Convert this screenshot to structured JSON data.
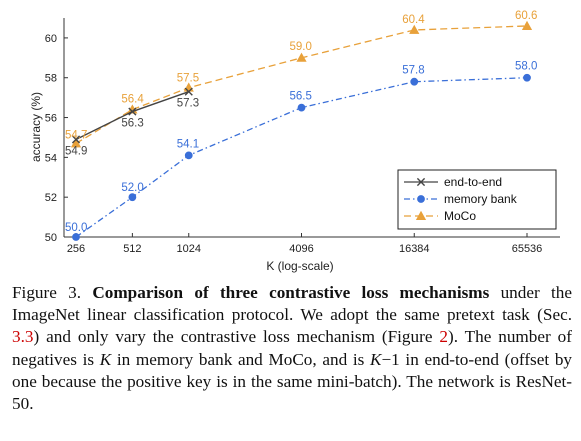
{
  "chart_data": {
    "type": "line",
    "xlabel": "K (log-scale)",
    "ylabel": "accuracy (%)",
    "x_scale": "log2",
    "x_ticks": [
      "256",
      "512",
      "1024",
      "4096",
      "16384",
      "65536"
    ],
    "y_ticks": [
      "50",
      "52",
      "54",
      "56",
      "58",
      "60"
    ],
    "ylim": [
      50,
      61
    ],
    "grid": false,
    "legend_position": "bottom-right",
    "series": [
      {
        "name": "end-to-end",
        "marker": "x",
        "line_style": "solid",
        "color": "#444444",
        "x": [
          256,
          512,
          1024
        ],
        "y": [
          54.9,
          56.3,
          57.3
        ],
        "labels": [
          "54.9",
          "56.3",
          "57.3"
        ]
      },
      {
        "name": "memory bank",
        "marker": "circle",
        "line_style": "dash-dot",
        "color": "#3a6fd8",
        "x": [
          256,
          512,
          1024,
          4096,
          16384,
          65536
        ],
        "y": [
          50.0,
          52.0,
          54.1,
          56.5,
          57.8,
          58.0
        ],
        "labels": [
          "50.0",
          "52.0",
          "54.1",
          "56.5",
          "57.8",
          "58.0"
        ]
      },
      {
        "name": "MoCo",
        "marker": "triangle",
        "line_style": "dashed",
        "color": "#e8a13a",
        "x": [
          256,
          512,
          1024,
          4096,
          16384,
          65536
        ],
        "y": [
          54.7,
          56.4,
          57.5,
          59.0,
          60.4,
          60.6
        ],
        "labels": [
          "54.7",
          "56.4",
          "57.5",
          "59.0",
          "60.4",
          "60.6"
        ]
      }
    ]
  },
  "caption": {
    "prefix": "Figure 3. ",
    "bold": "Comparison of three contrastive loss mechanisms",
    "t1": " under the ImageNet linear classification protocol. We adopt the same pretext task (Sec. ",
    "ref1": "3.3",
    "t2": ") and only vary the contrastive loss mechanism (Figure ",
    "ref2": "2",
    "t3": "). The number of negatives is ",
    "k1": "K",
    "t4": " in memory bank and MoCo, and is ",
    "k2": "K",
    "t5": "−1 in end-to-end (offset by one because the positive key is in the same mini-batch). The network is ResNet-50."
  }
}
